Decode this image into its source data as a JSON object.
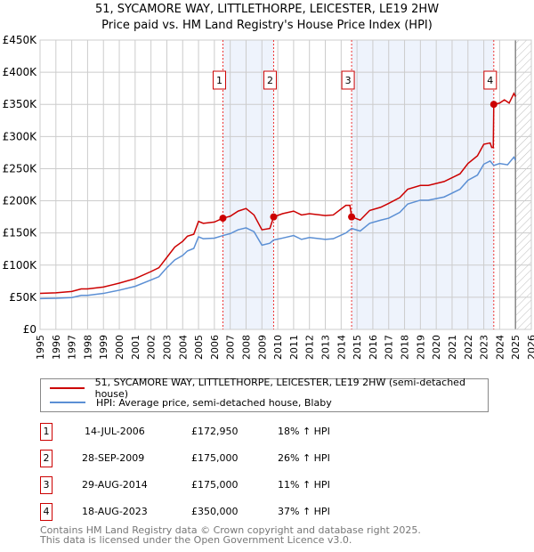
{
  "title": "51, SYCAMORE WAY, LITTLETHORPE, LEICESTER, LE19 2HW",
  "subtitle": "Price paid vs. HM Land Registry's House Price Index (HPI)",
  "chart_data": {
    "type": "line",
    "ylim": [
      0,
      450000
    ],
    "xlim": [
      1995,
      2026
    ],
    "yticks": [
      {
        "v": 0,
        "l": "£0"
      },
      {
        "v": 50000,
        "l": "£50K"
      },
      {
        "v": 100000,
        "l": "£100K"
      },
      {
        "v": 150000,
        "l": "£150K"
      },
      {
        "v": 200000,
        "l": "£200K"
      },
      {
        "v": 250000,
        "l": "£250K"
      },
      {
        "v": 300000,
        "l": "£300K"
      },
      {
        "v": 350000,
        "l": "£350K"
      },
      {
        "v": 400000,
        "l": "£400K"
      },
      {
        "v": 450000,
        "l": "£450K"
      }
    ],
    "xticks": [
      "1995",
      "1996",
      "1997",
      "1998",
      "1999",
      "2000",
      "2001",
      "2002",
      "2003",
      "2004",
      "2005",
      "2006",
      "2007",
      "2008",
      "2009",
      "2010",
      "2011",
      "2012",
      "2013",
      "2014",
      "2015",
      "2016",
      "2017",
      "2018",
      "2019",
      "2020",
      "2021",
      "2022",
      "2023",
      "2024",
      "2025",
      "2026"
    ],
    "forecast_start": 2025,
    "series": [
      {
        "name": "51, SYCAMORE WAY, LITTLETHORPE, LEICESTER, LE19 2HW (semi-detached house)",
        "color": "#cc0000",
        "points": [
          [
            1995,
            56000
          ],
          [
            1996,
            57000
          ],
          [
            1997,
            59000
          ],
          [
            1997.6,
            63000
          ],
          [
            1998,
            63000
          ],
          [
            1999,
            66000
          ],
          [
            2000,
            72000
          ],
          [
            2001,
            79000
          ],
          [
            2002,
            90000
          ],
          [
            2002.5,
            96000
          ],
          [
            2003,
            112000
          ],
          [
            2003.5,
            128000
          ],
          [
            2004,
            137000
          ],
          [
            2004.3,
            145000
          ],
          [
            2004.7,
            148000
          ],
          [
            2005,
            168000
          ],
          [
            2005.3,
            165000
          ],
          [
            2006,
            167000
          ],
          [
            2006.54,
            172950
          ],
          [
            2007,
            176000
          ],
          [
            2007.5,
            184000
          ],
          [
            2008,
            188000
          ],
          [
            2008.5,
            178000
          ],
          [
            2009,
            155000
          ],
          [
            2009.5,
            157000
          ],
          [
            2009.74,
            175000
          ],
          [
            2010.3,
            180000
          ],
          [
            2011,
            184000
          ],
          [
            2011.5,
            178000
          ],
          [
            2012,
            180000
          ],
          [
            2013,
            177000
          ],
          [
            2013.5,
            178000
          ],
          [
            2014.3,
            193000
          ],
          [
            2014.55,
            193000
          ],
          [
            2014.66,
            175000
          ],
          [
            2015.2,
            170000
          ],
          [
            2015.8,
            185000
          ],
          [
            2016.5,
            190000
          ],
          [
            2017,
            196000
          ],
          [
            2017.7,
            205000
          ],
          [
            2018.2,
            218000
          ],
          [
            2019,
            224000
          ],
          [
            2019.5,
            224000
          ],
          [
            2020.5,
            230000
          ],
          [
            2021,
            236000
          ],
          [
            2021.5,
            242000
          ],
          [
            2022,
            258000
          ],
          [
            2022.6,
            270000
          ],
          [
            2023,
            288000
          ],
          [
            2023.4,
            290000
          ],
          [
            2023.5,
            283000
          ],
          [
            2023.6,
            283000
          ],
          [
            2023.63,
            350000
          ],
          [
            2024,
            352000
          ],
          [
            2024.3,
            357000
          ],
          [
            2024.6,
            352000
          ],
          [
            2024.9,
            367000
          ],
          [
            2025,
            362000
          ]
        ]
      },
      {
        "name": "HPI: Average price, semi-detached house, Blaby",
        "color": "#5b8fd4",
        "points": [
          [
            1995,
            48000
          ],
          [
            1996,
            48500
          ],
          [
            1997,
            49500
          ],
          [
            1997.6,
            53000
          ],
          [
            1998,
            53000
          ],
          [
            1999,
            56000
          ],
          [
            2000,
            61000
          ],
          [
            2001,
            67000
          ],
          [
            2002,
            77000
          ],
          [
            2002.5,
            82000
          ],
          [
            2003,
            96000
          ],
          [
            2003.5,
            108000
          ],
          [
            2004,
            115000
          ],
          [
            2004.3,
            122000
          ],
          [
            2004.7,
            126000
          ],
          [
            2005,
            144000
          ],
          [
            2005.3,
            141000
          ],
          [
            2006,
            142000
          ],
          [
            2006.54,
            146000
          ],
          [
            2007,
            149000
          ],
          [
            2007.5,
            155000
          ],
          [
            2008,
            158000
          ],
          [
            2008.5,
            152000
          ],
          [
            2009,
            131000
          ],
          [
            2009.5,
            134000
          ],
          [
            2009.74,
            139000
          ],
          [
            2010.3,
            142000
          ],
          [
            2011,
            146000
          ],
          [
            2011.5,
            140000
          ],
          [
            2012,
            143000
          ],
          [
            2013,
            140000
          ],
          [
            2013.5,
            141000
          ],
          [
            2014.3,
            150000
          ],
          [
            2014.66,
            157000
          ],
          [
            2015.2,
            153000
          ],
          [
            2015.8,
            165000
          ],
          [
            2016.5,
            170000
          ],
          [
            2017,
            173000
          ],
          [
            2017.7,
            182000
          ],
          [
            2018.2,
            195000
          ],
          [
            2019,
            201000
          ],
          [
            2019.5,
            201000
          ],
          [
            2020.5,
            206000
          ],
          [
            2021,
            212000
          ],
          [
            2021.5,
            218000
          ],
          [
            2022,
            232000
          ],
          [
            2022.6,
            240000
          ],
          [
            2023,
            257000
          ],
          [
            2023.4,
            262000
          ],
          [
            2023.63,
            255000
          ],
          [
            2024,
            258000
          ],
          [
            2024.5,
            256000
          ],
          [
            2024.9,
            268000
          ],
          [
            2025,
            263000
          ]
        ]
      }
    ],
    "sales": [
      {
        "n": "1",
        "x": 2006.54,
        "y": 172950
      },
      {
        "n": "2",
        "x": 2009.74,
        "y": 175000
      },
      {
        "n": "3",
        "x": 2014.66,
        "y": 175000
      },
      {
        "n": "4",
        "x": 2023.63,
        "y": 350000
      }
    ],
    "shaded": [
      [
        2006.54,
        2009.74
      ],
      [
        2014.66,
        2023.63
      ]
    ]
  },
  "legend": {
    "property": "51, SYCAMORE WAY, LITTLETHORPE, LEICESTER, LE19 2HW (semi-detached house)",
    "hpi": "HPI: Average price, semi-detached house, Blaby"
  },
  "transactions": [
    {
      "n": "1",
      "date": "14-JUL-2006",
      "price": "£172,950",
      "hpi": "18% ↑ HPI"
    },
    {
      "n": "2",
      "date": "28-SEP-2009",
      "price": "£175,000",
      "hpi": "26% ↑ HPI"
    },
    {
      "n": "3",
      "date": "29-AUG-2014",
      "price": "£175,000",
      "hpi": "11% ↑ HPI"
    },
    {
      "n": "4",
      "date": "18-AUG-2023",
      "price": "£350,000",
      "hpi": "37% ↑ HPI"
    }
  ],
  "footer": [
    "Contains HM Land Registry data © Crown copyright and database right 2025.",
    "This data is licensed under the Open Government Licence v3.0."
  ]
}
